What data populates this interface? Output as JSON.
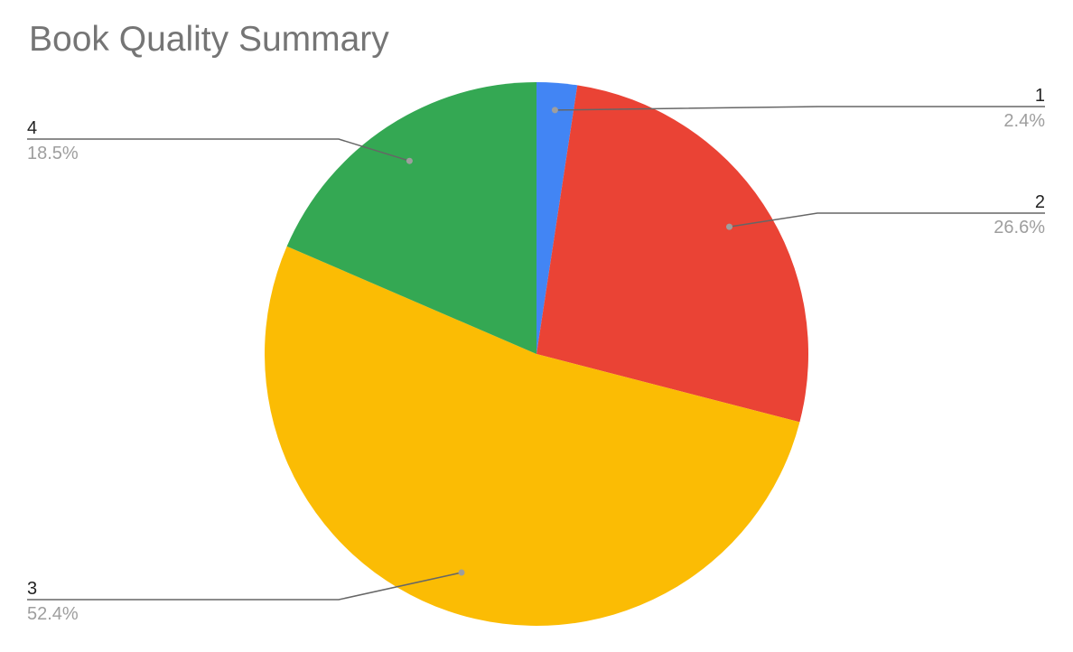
{
  "chart_data": {
    "type": "pie",
    "title": "Book Quality Summary",
    "categories": [
      "1",
      "2",
      "3",
      "4"
    ],
    "values": [
      2.4,
      26.6,
      52.4,
      18.5
    ],
    "value_labels": [
      "2.4%",
      "26.6%",
      "52.4%",
      "18.5%"
    ],
    "colors": [
      "#4285F4",
      "#EA4335",
      "#FBBC04",
      "#34A853"
    ],
    "legend": "none"
  }
}
